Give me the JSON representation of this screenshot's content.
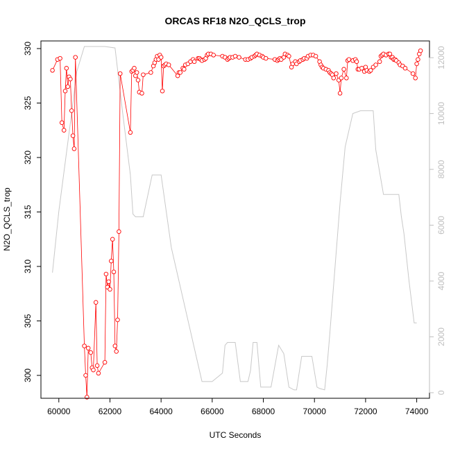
{
  "chart_data": {
    "type": "line",
    "title": "ORCAS RF18 N2O_QCLS_trop",
    "xlabel": "UTC Seconds",
    "ylabel": "N2O_QCLS_trop",
    "xlim": [
      59300,
      74500
    ],
    "ylim": [
      297.9,
      330.7
    ],
    "y2lim": [
      -200,
      12600
    ],
    "x_ticks": [
      60000,
      62000,
      64000,
      66000,
      68000,
      70000,
      72000,
      74000
    ],
    "y_ticks": [
      300,
      305,
      310,
      315,
      320,
      325,
      330
    ],
    "y2_ticks": [
      0,
      2000,
      4000,
      6000,
      8000,
      10000,
      12000
    ],
    "grid": false,
    "legend": "none",
    "colors": {
      "primary": "#ff0000",
      "secondary": "#c8c8c8",
      "axis": "#000000",
      "axis2": "#bebebe"
    },
    "series": [
      {
        "axis": "left",
        "style": "line-points",
        "x": [
          59750,
          59950,
          60050,
          60120,
          60200,
          60250,
          60300,
          60350,
          60400,
          60450,
          60500,
          60550,
          60600,
          60650,
          61000,
          61050,
          61100,
          61150,
          61250,
          61300,
          61350,
          61450,
          61500,
          61550,
          61800,
          61850,
          61900,
          61950,
          62000,
          62050,
          62100,
          62150,
          62200,
          62250,
          62300,
          62350,
          62400,
          62800,
          62850,
          62900,
          62950,
          63000,
          63050,
          63100,
          63150,
          63250,
          63300,
          63600,
          63700,
          63750,
          63800,
          63850,
          63900,
          63950,
          64000,
          64050,
          64100,
          64150,
          64200,
          64300,
          64650,
          64700,
          64750,
          64850,
          64900,
          64950,
          65050,
          65150,
          65250,
          65300,
          65450,
          65500,
          65550,
          65600,
          65700,
          65750,
          65800,
          65850,
          65950,
          66050,
          66400,
          66500,
          66600,
          66650,
          66700,
          66800,
          66900,
          67050,
          67300,
          67400,
          67500,
          67550,
          67650,
          67700,
          67750,
          67850,
          67950,
          68000,
          68100,
          68450,
          68550,
          68600,
          68650,
          68700,
          68800,
          68850,
          68950,
          69000,
          69100,
          69150,
          69250,
          69300,
          69400,
          69450,
          69550,
          69600,
          69700,
          69750,
          69850,
          69950,
          70050,
          70200,
          70250,
          70300,
          70350,
          70450,
          70550,
          70600,
          70650,
          70700,
          70750,
          70850,
          70950,
          71000,
          71050,
          71150,
          71250,
          71300,
          71350,
          71500,
          71600,
          71650,
          71700,
          71750,
          71850,
          71950,
          72000,
          72050,
          72150,
          72200,
          72300,
          72400,
          72550,
          72600,
          72650,
          72700,
          72800,
          72900,
          72950,
          73000,
          73050,
          73100,
          73150,
          73200,
          73300,
          73350,
          73450,
          73550,
          73850,
          73950,
          74000,
          74050,
          74100,
          74150
        ],
        "y": [
          328.0,
          329.0,
          329.1,
          323.2,
          322.5,
          326.1,
          328.2,
          326.5,
          327.4,
          327.2,
          324.3,
          322.0,
          320.8,
          329.2,
          302.7,
          300.0,
          298.0,
          302.5,
          302.1,
          300.7,
          300.5,
          306.7,
          300.9,
          300.2,
          301.2,
          309.3,
          308.1,
          308.6,
          307.9,
          310.5,
          312.5,
          309.5,
          302.7,
          302.2,
          305.1,
          313.2,
          327.7,
          322.3,
          327.9,
          328.0,
          328.2,
          327.5,
          327.8,
          327.1,
          326.0,
          325.9,
          327.6,
          327.8,
          328.4,
          328.7,
          329.0,
          329.3,
          329.0,
          329.4,
          329.2,
          326.1,
          328.4,
          328.5,
          328.6,
          328.5,
          327.5,
          327.8,
          327.8,
          328.2,
          328.1,
          328.5,
          328.6,
          328.8,
          329.0,
          328.8,
          329.1,
          329.1,
          329.0,
          328.9,
          329.0,
          329.1,
          329.4,
          329.5,
          329.5,
          329.4,
          329.3,
          329.2,
          329.0,
          329.1,
          329.2,
          329.2,
          329.3,
          329.2,
          329.0,
          329.0,
          329.1,
          329.2,
          329.3,
          329.4,
          329.5,
          329.4,
          329.3,
          329.2,
          329.1,
          329.0,
          328.9,
          329.0,
          329.1,
          329.0,
          329.2,
          329.5,
          329.4,
          329.3,
          328.3,
          328.6,
          328.8,
          328.6,
          328.8,
          328.9,
          329.0,
          329.1,
          329.1,
          329.3,
          329.4,
          329.4,
          329.3,
          328.8,
          328.5,
          328.3,
          328.2,
          328.1,
          328.0,
          327.8,
          327.7,
          327.6,
          327.3,
          327.7,
          327.1,
          325.9,
          327.3,
          328.1,
          327.3,
          328.9,
          329.0,
          328.9,
          329.0,
          328.8,
          328.1,
          328.1,
          328.2,
          327.9,
          328.3,
          328.0,
          327.9,
          328.0,
          328.3,
          328.5,
          328.8,
          329.3,
          329.4,
          329.5,
          329.4,
          329.5,
          329.5,
          329.2,
          329.2,
          329.0,
          329.0,
          328.9,
          328.7,
          328.5,
          328.4,
          328.2,
          327.7,
          327.3,
          328.6,
          329.0,
          329.5,
          329.8
        ]
      },
      {
        "axis": "right",
        "style": "line",
        "x": [
          59750,
          60000,
          60500,
          60700,
          61000,
          61300,
          61800,
          62200,
          62500,
          62800,
          62900,
          63000,
          63100,
          63300,
          63650,
          63800,
          64000,
          64400,
          65000,
          65600,
          65700,
          65800,
          65900,
          66000,
          66400,
          66500,
          66600,
          66800,
          66900,
          67100,
          67200,
          67400,
          67500,
          67600,
          67750,
          67900,
          68300,
          68600,
          68800,
          69000,
          69200,
          69300,
          69500,
          69600,
          69700,
          69900,
          70100,
          70200,
          70400,
          70500,
          70600,
          71000,
          71200,
          71500,
          71800,
          72000,
          72300,
          72400,
          72700,
          72800,
          73300,
          73400,
          73500,
          73700,
          73900,
          74000
        ],
        "y": [
          4300,
          6500,
          10000,
          11500,
          12400,
          12400,
          12400,
          12350,
          10000,
          7800,
          6400,
          6300,
          6300,
          6300,
          7800,
          7800,
          7800,
          5200,
          2800,
          400,
          400,
          400,
          400,
          400,
          700,
          1700,
          1800,
          1800,
          1800,
          400,
          400,
          400,
          800,
          1800,
          1800,
          200,
          200,
          1700,
          1400,
          200,
          100,
          100,
          1300,
          1300,
          1300,
          1300,
          200,
          150,
          100,
          1000,
          2100,
          6800,
          8800,
          10000,
          10100,
          10100,
          10100,
          8700,
          7100,
          7100,
          7100,
          6300,
          5700,
          4000,
          2500,
          2500
        ]
      }
    ]
  }
}
